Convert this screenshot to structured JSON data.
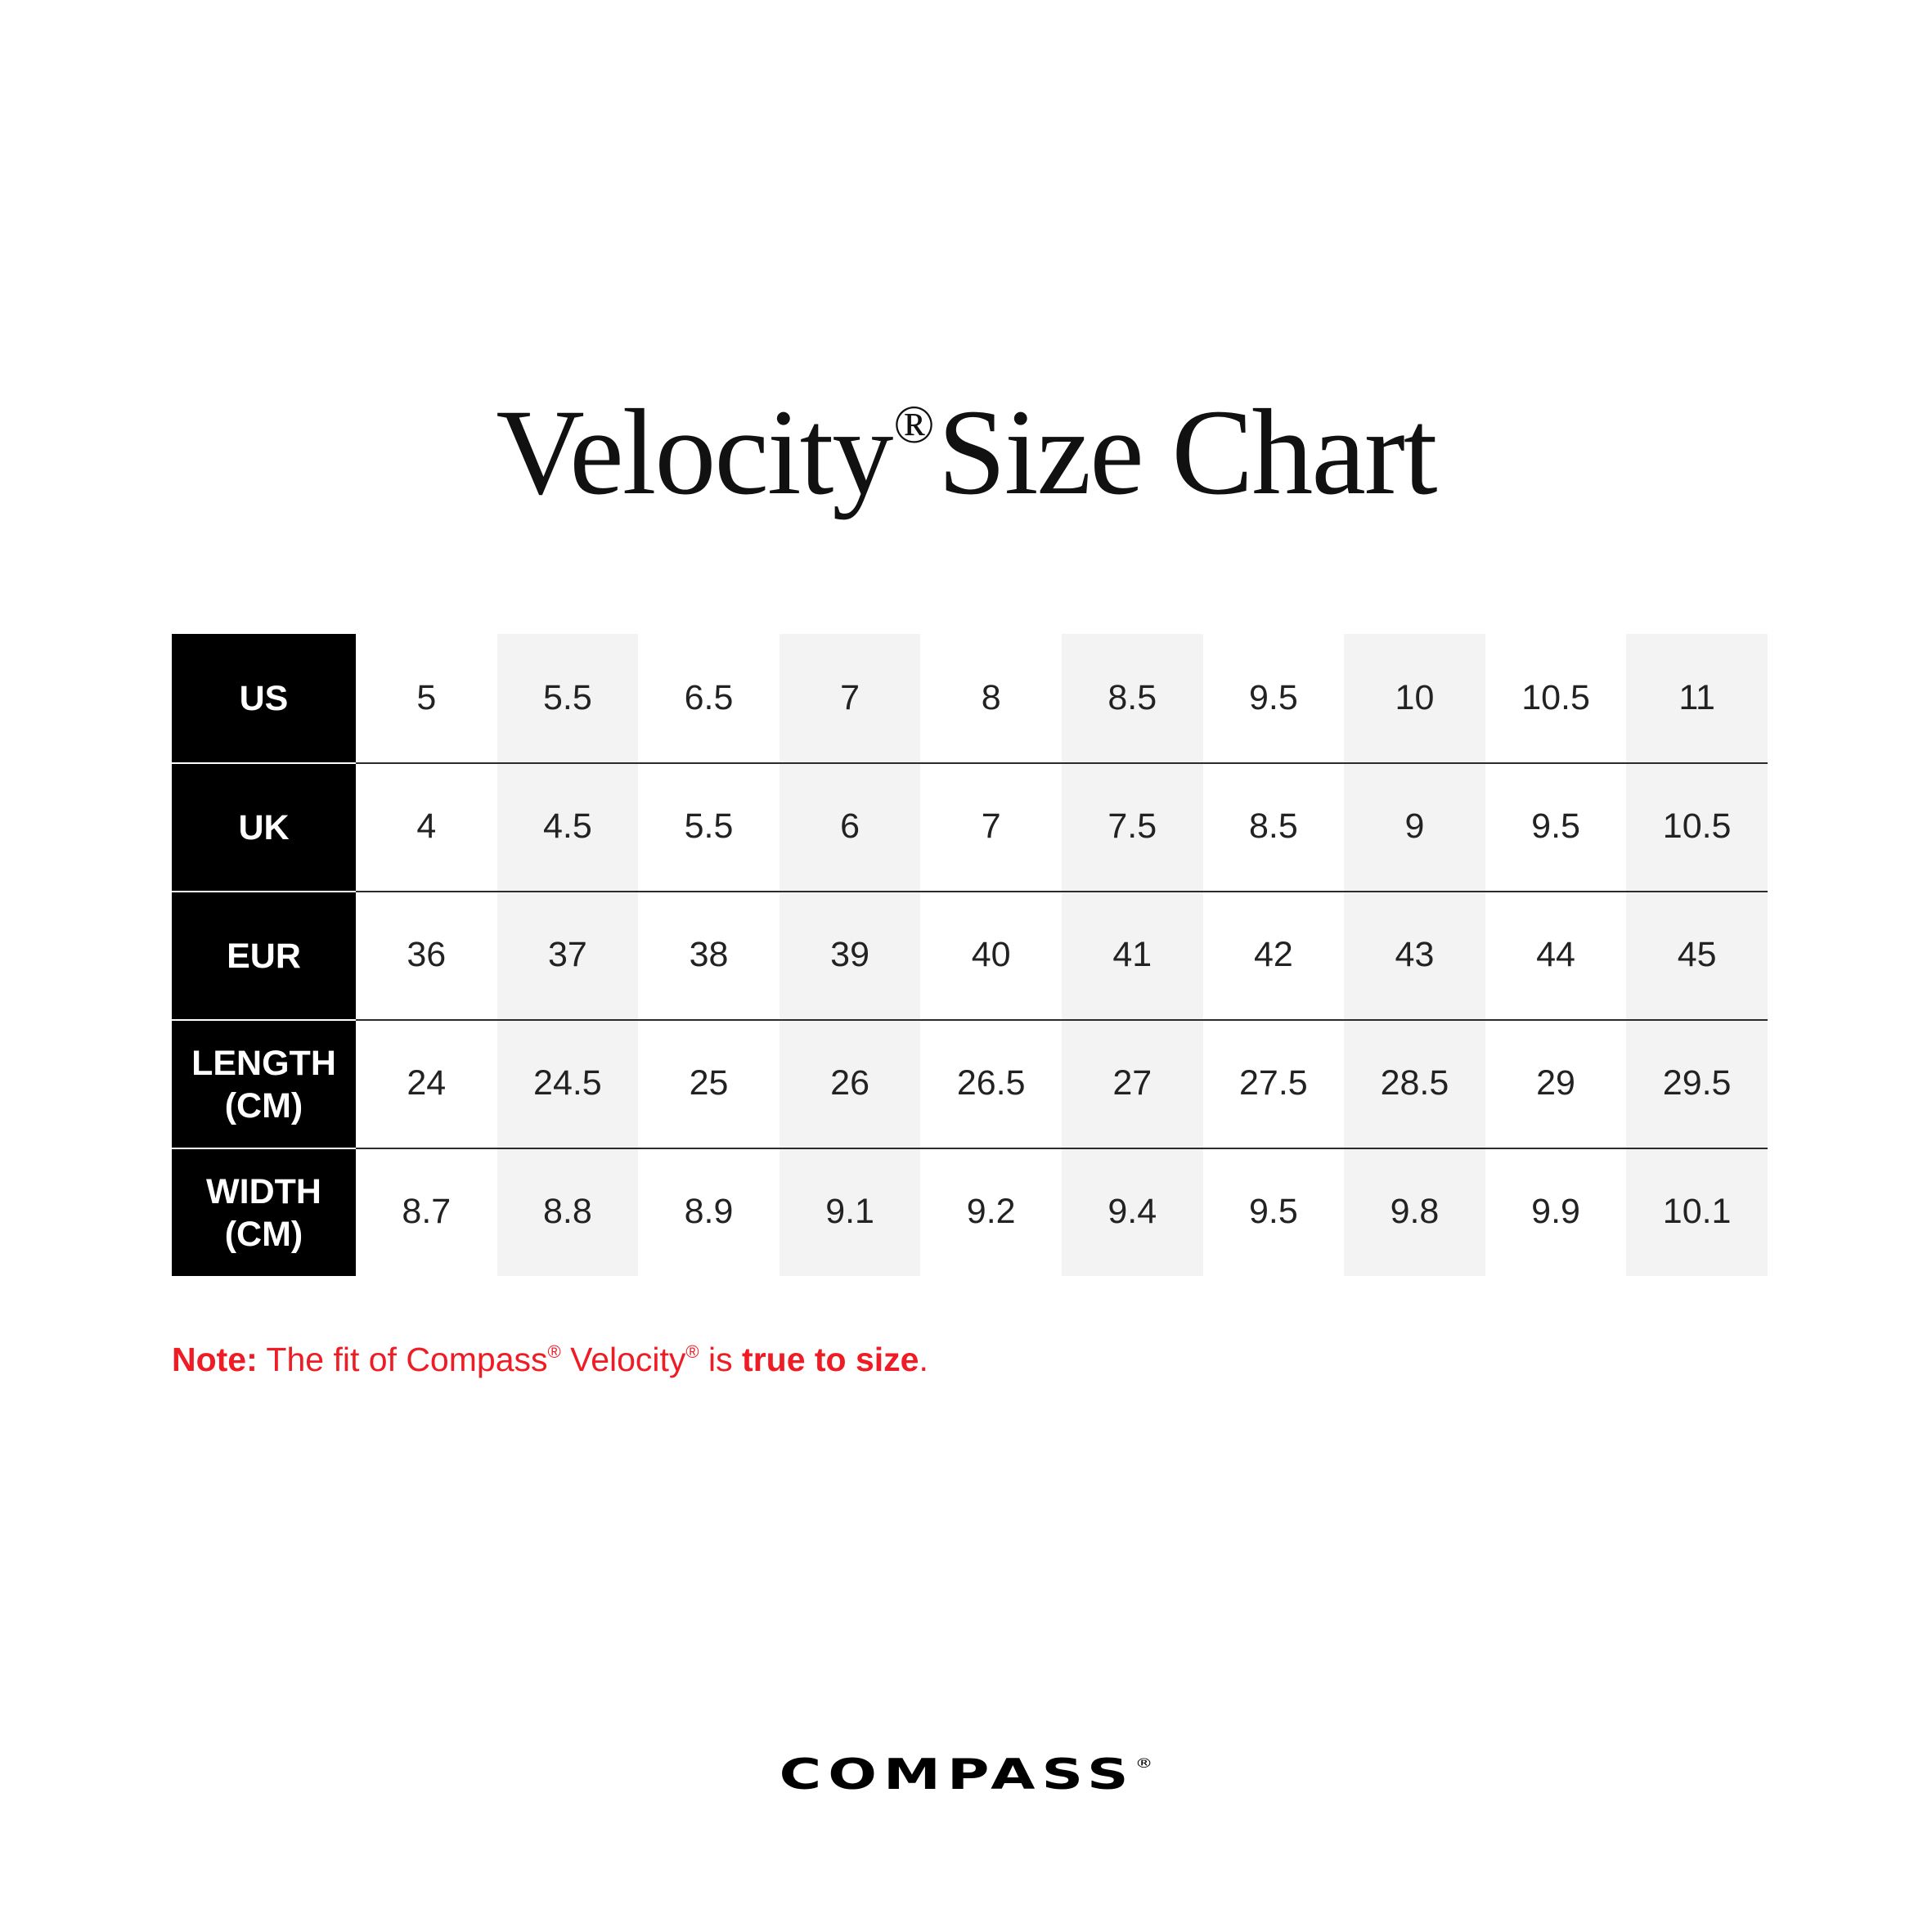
{
  "title": {
    "main": "Velocity",
    "registered": "®",
    "rest": "Size Chart"
  },
  "table": {
    "rows": [
      {
        "label": "US",
        "values": [
          "5",
          "5.5",
          "6.5",
          "7",
          "8",
          "8.5",
          "9.5",
          "10",
          "10.5",
          "11"
        ]
      },
      {
        "label": "UK",
        "values": [
          "4",
          "4.5",
          "5.5",
          "6",
          "7",
          "7.5",
          "8.5",
          "9",
          "9.5",
          "10.5"
        ]
      },
      {
        "label": "EUR",
        "values": [
          "36",
          "37",
          "38",
          "39",
          "40",
          "41",
          "42",
          "43",
          "44",
          "45"
        ]
      },
      {
        "label": "LENGTH\n(CM)",
        "values": [
          "24",
          "24.5",
          "25",
          "26",
          "26.5",
          "27",
          "27.5",
          "28.5",
          "29",
          "29.5"
        ]
      },
      {
        "label": "WIDTH\n(CM)",
        "values": [
          "8.7",
          "8.8",
          "8.9",
          "9.1",
          "9.2",
          "9.4",
          "9.5",
          "9.8",
          "9.9",
          "10.1"
        ]
      }
    ]
  },
  "note": {
    "prefix": "Note:",
    "text1": " The fit of Compass",
    "reg1": "®",
    "text2": " Velocity",
    "reg2": "®",
    "text3": " is ",
    "emphasis": "true to size",
    "suffix": "."
  },
  "logo": {
    "text": "COMPASS",
    "registered": "®"
  },
  "colors": {
    "label_background": "#000000",
    "shaded_column": "#f3f3f3",
    "note_red": "#ee1c24"
  }
}
